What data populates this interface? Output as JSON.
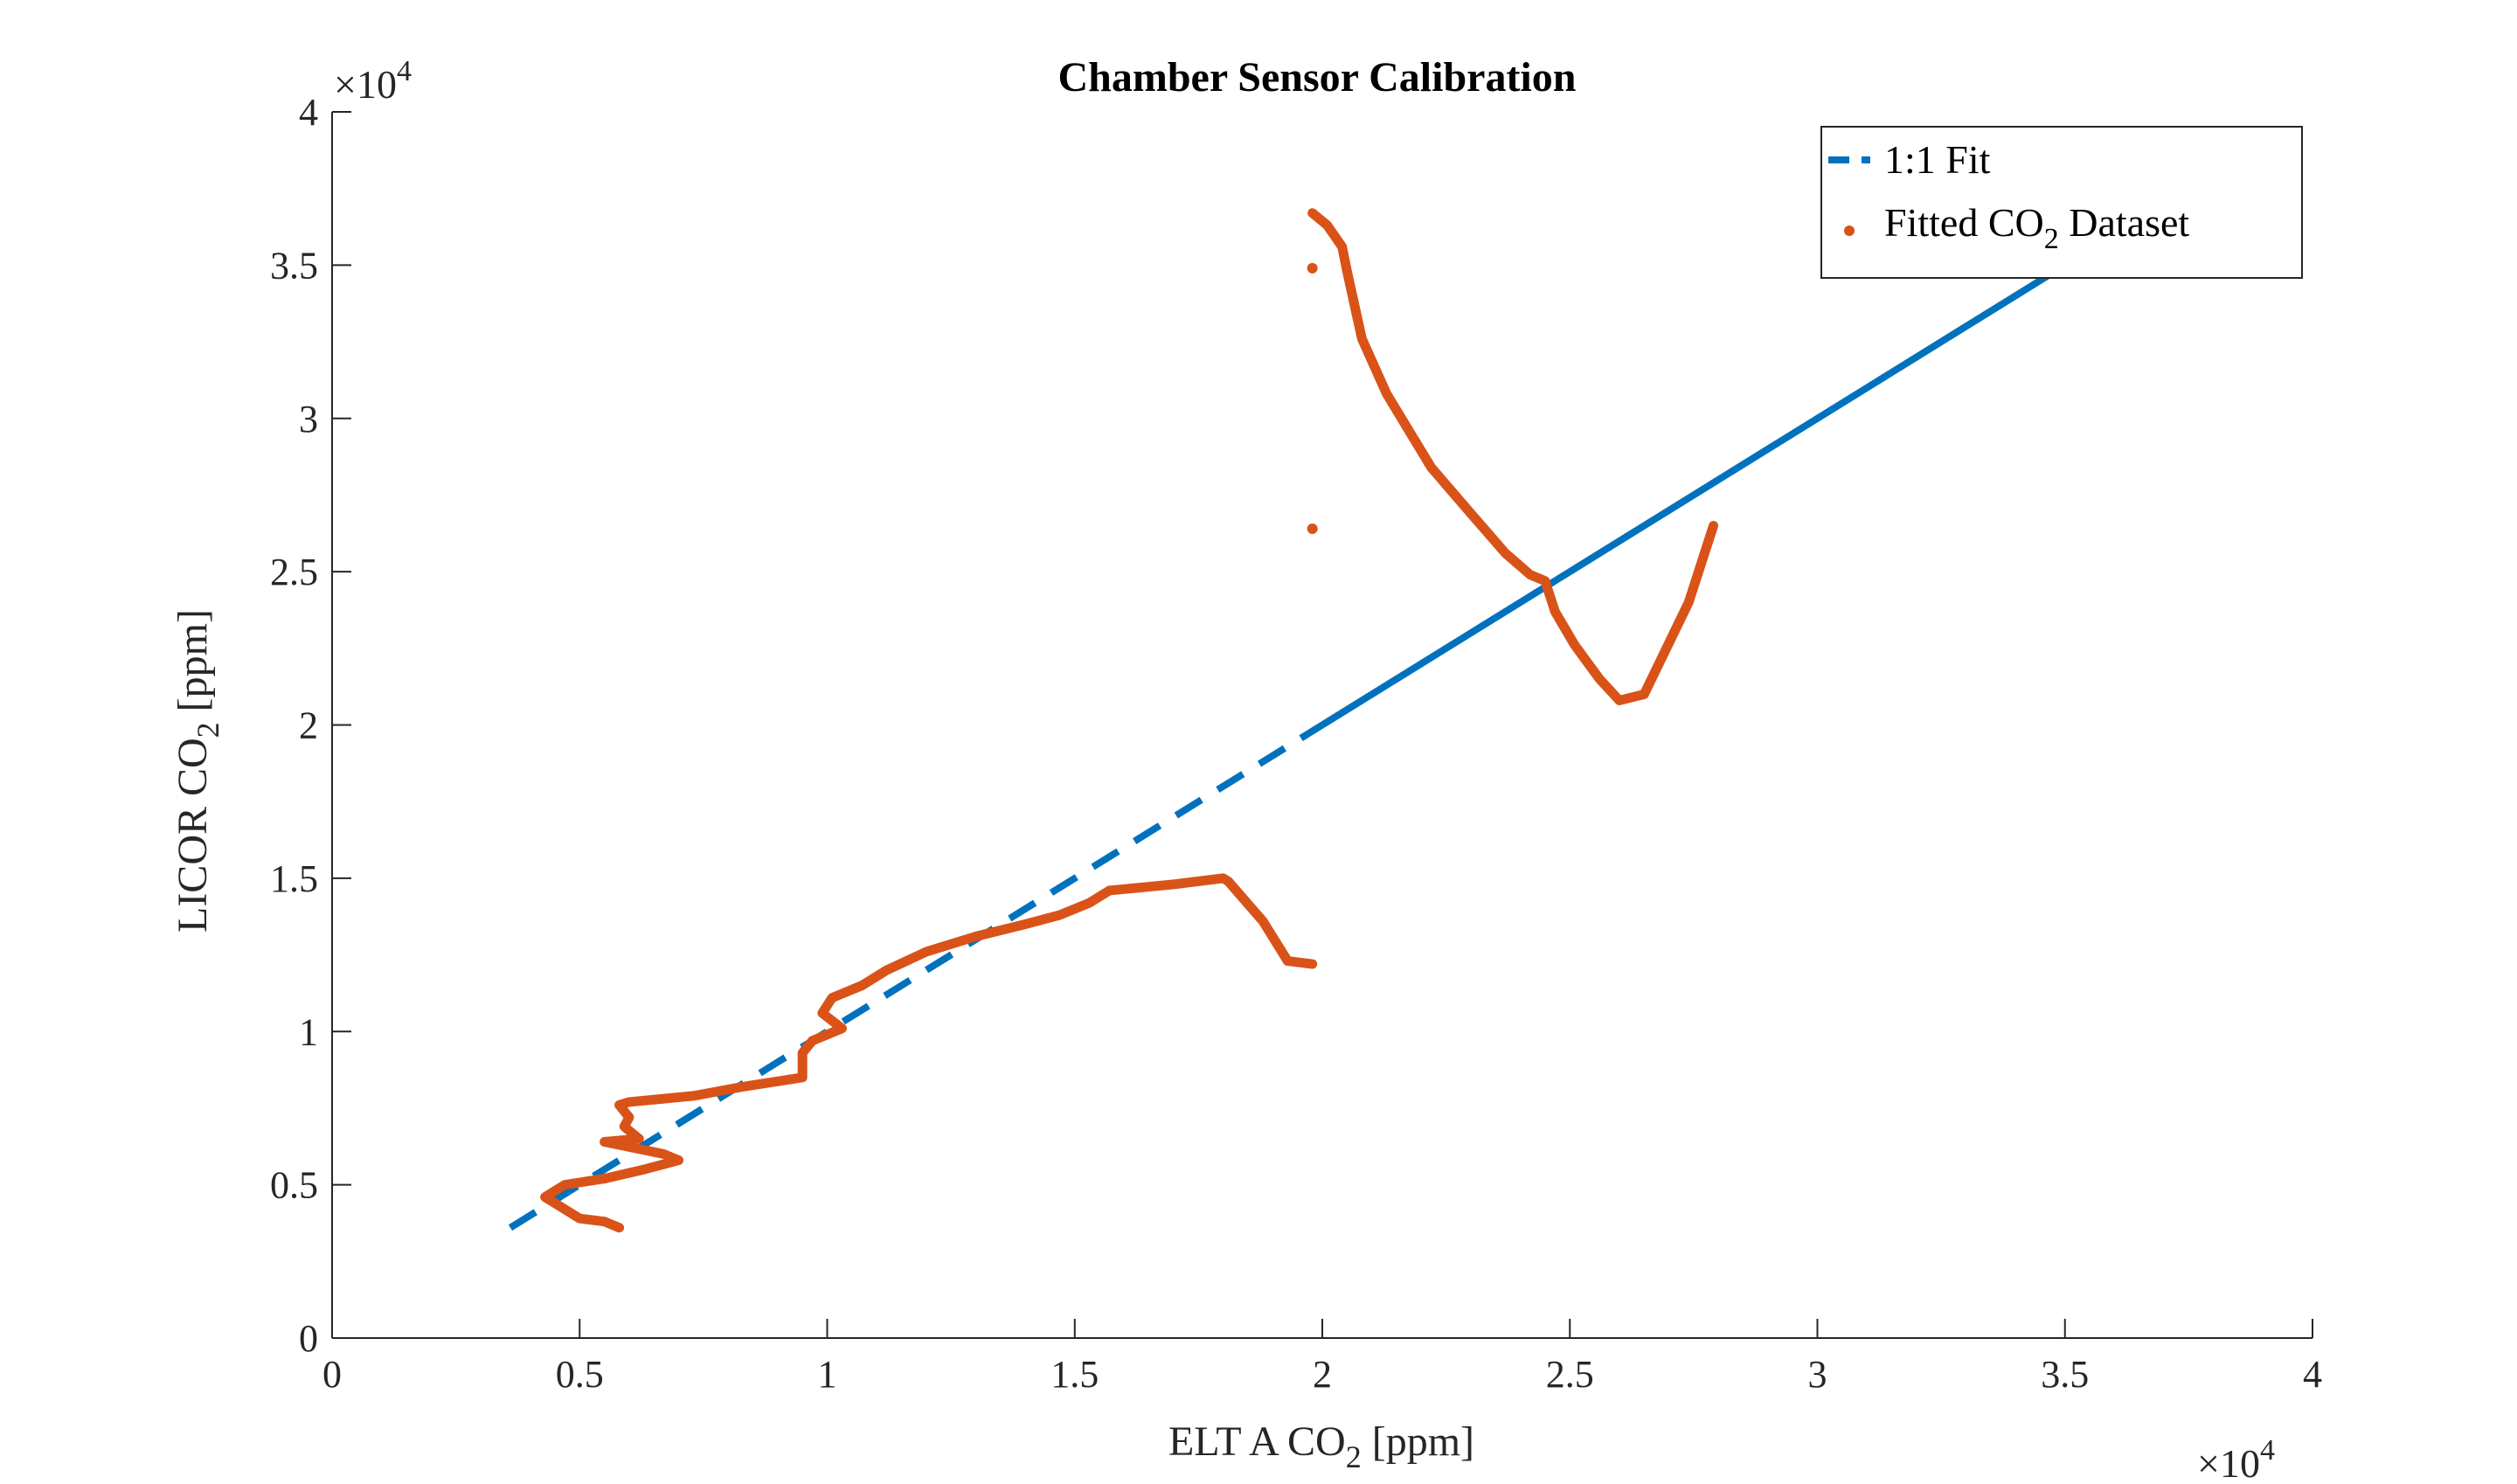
{
  "chart_data": {
    "type": "scatter",
    "title": "Chamber Sensor Calibration",
    "xlabel": {
      "main": "ELT A CO",
      "sub": "2",
      "unit": " [ppm]"
    },
    "ylabel": {
      "main": "LICOR CO",
      "sub": "2",
      "unit": " [ppm]"
    },
    "xlim": [
      0,
      40000
    ],
    "ylim": [
      0,
      40000
    ],
    "x_ticks": [
      0,
      5000,
      10000,
      15000,
      20000,
      25000,
      30000,
      35000,
      40000
    ],
    "x_tick_labels": [
      "0",
      "0.5",
      "1",
      "1.5",
      "2",
      "2.5",
      "3",
      "3.5",
      "4"
    ],
    "y_ticks": [
      0,
      5000,
      10000,
      15000,
      20000,
      25000,
      30000,
      35000,
      40000
    ],
    "y_tick_labels": [
      "0",
      "0.5",
      "1",
      "1.5",
      "2",
      "2.5",
      "3",
      "3.5",
      "4"
    ],
    "x_exponent": {
      "base": "×10",
      "power": "4"
    },
    "y_exponent": {
      "base": "×10",
      "power": "4"
    },
    "grid": false,
    "legend_position": "top-right",
    "series": [
      {
        "name": "1:1 Fit",
        "type": "line",
        "color": "#0072BD",
        "segments": [
          {
            "style": "dashed",
            "x": [
              3600,
              20000
            ],
            "y": [
              3600,
              20000
            ]
          },
          {
            "style": "solid",
            "x": [
              20000,
              35000
            ],
            "y": [
              20000,
              35000
            ]
          }
        ]
      },
      {
        "name": "Fitted CO",
        "name_sub": "2",
        "name_suffix": " Dataset",
        "type": "scatter",
        "color": "#D95319",
        "path_lower": {
          "x": [
            5800,
            5500,
            5000,
            4700,
            4300,
            4700,
            5500,
            6300,
            7000,
            6700,
            5500,
            6200,
            5900,
            6000,
            5800,
            6000,
            7300,
            8300,
            9500,
            9500,
            9700,
            10300,
            9900,
            10100,
            10700,
            11200,
            12000,
            13000,
            14000,
            14700,
            15300,
            15700,
            17000,
            18000,
            18100,
            18800,
            19300,
            19800
          ],
          "y": [
            3600,
            3800,
            3900,
            4200,
            4600,
            5000,
            5200,
            5500,
            5800,
            6000,
            6400,
            6500,
            6900,
            7200,
            7600,
            7700,
            7900,
            8200,
            8500,
            9300,
            9700,
            10100,
            10600,
            11100,
            11500,
            12000,
            12600,
            13100,
            13500,
            13800,
            14200,
            14600,
            14800,
            15000,
            14900,
            13600,
            12300,
            12200
          ]
        },
        "path_upper": {
          "x": [
            19800,
            20100,
            20400,
            20500,
            20800,
            21300,
            22200,
            23000,
            23700,
            24200,
            24500,
            24700,
            25100,
            25600,
            26000,
            26500,
            26800,
            27400,
            27900
          ],
          "y": [
            36700,
            36300,
            35600,
            34800,
            32600,
            30800,
            28400,
            26900,
            25600,
            24900,
            24700,
            23700,
            22600,
            21500,
            20800,
            21000,
            22000,
            24000,
            26500
          ]
        },
        "isolated_points": {
          "x": [
            19800,
            19800
          ],
          "y": [
            34900,
            26400
          ]
        }
      }
    ]
  }
}
